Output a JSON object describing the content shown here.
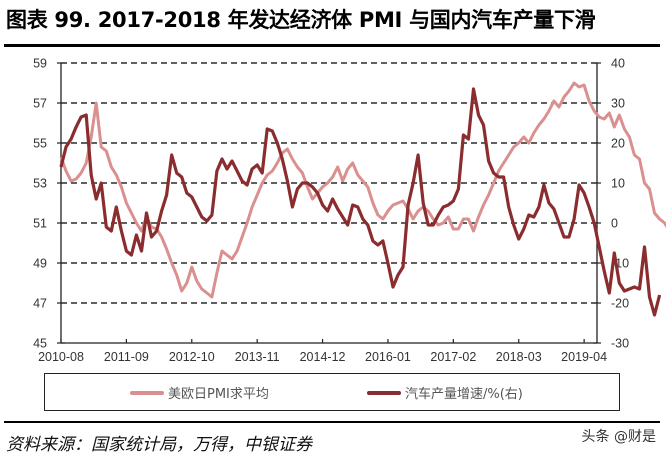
{
  "title": "图表 99. 2017-2018 年发达经济体 PMI 与国内汽车产量下滑",
  "source": "资料来源：国家统计局，万得，中银证券",
  "watermark": "头条 @财是",
  "legend": {
    "series1": "美欧日PMI求平均",
    "series2": "汽车产量增速/%(右)"
  },
  "colors": {
    "pmi": "#D9908E",
    "auto": "#8B2C2E",
    "grid": "#000000"
  },
  "chart_data": {
    "type": "line",
    "title": "图表 99. 2017-2018 年发达经济体 PMI 与国内汽车产量下滑",
    "xlabel": "",
    "ylabel_left": "",
    "ylabel_right": "",
    "x_tick_labels": [
      "2010-08",
      "2011-09",
      "2012-10",
      "2013-11",
      "2014-12",
      "2016-01",
      "2017-02",
      "2018-03",
      "2019-04"
    ],
    "y_left_ticks": [
      45,
      47,
      49,
      51,
      53,
      55,
      57,
      59
    ],
    "y_right_ticks": [
      -30,
      -20,
      -10,
      0,
      10,
      20,
      30,
      40
    ],
    "ylim_left": [
      45,
      59
    ],
    "ylim_right": [
      -30,
      40
    ],
    "grid": "horizontal dashed",
    "legend_position": "bottom",
    "start_month": "2010-08",
    "frequency": "monthly",
    "series": [
      {
        "name": "美欧日PMI求平均",
        "axis": "left",
        "values": [
          54.3,
          53.6,
          53.1,
          53.2,
          53.5,
          54.0,
          55.3,
          57.0,
          54.8,
          54.6,
          53.8,
          53.4,
          52.8,
          52.0,
          51.5,
          51.0,
          50.6,
          51.3,
          50.8,
          50.7,
          50.3,
          49.7,
          49.0,
          48.4,
          47.6,
          48.0,
          48.8,
          48.1,
          47.7,
          47.5,
          47.3,
          48.5,
          49.6,
          49.4,
          49.2,
          49.6,
          50.3,
          51.0,
          51.8,
          52.4,
          53.0,
          53.4,
          53.6,
          54.0,
          54.5,
          54.7,
          54.2,
          53.8,
          53.5,
          52.8,
          52.2,
          52.5,
          52.8,
          53.0,
          53.3,
          53.8,
          53.1,
          53.7,
          54.0,
          53.4,
          53.1,
          52.8,
          52.0,
          51.4,
          51.2,
          51.6,
          51.9,
          52.0,
          52.1,
          51.7,
          51.2,
          51.6,
          51.8,
          51.6,
          51.2,
          50.9,
          51.0,
          51.3,
          50.7,
          50.7,
          51.2,
          51.2,
          50.6,
          51.3,
          51.9,
          52.4,
          53.0,
          53.6,
          54.0,
          54.4,
          54.8,
          55.0,
          55.3,
          55.0,
          55.5,
          55.9,
          56.2,
          56.6,
          57.1,
          56.8,
          57.3,
          57.6,
          58.0,
          57.8,
          57.9,
          57.1,
          56.6,
          56.3,
          56.2,
          56.5,
          55.8,
          56.4,
          55.7,
          55.3,
          54.4,
          54.2,
          53.0,
          52.7,
          51.5,
          51.2,
          51.0,
          50.6,
          50.2,
          49.7
        ]
      },
      {
        "name": "汽车产量增速/%(右)",
        "axis": "right",
        "values": [
          14.0,
          19.0,
          21.0,
          24.0,
          26.5,
          27.0,
          12.0,
          6.0,
          10.0,
          -1.0,
          -2.0,
          4.0,
          -2.0,
          -7.0,
          -8.0,
          -3.0,
          -7.0,
          2.5,
          -3.5,
          -2.0,
          3.0,
          7.0,
          17.0,
          12.5,
          11.5,
          7.5,
          6.5,
          4.0,
          1.5,
          0.5,
          2.0,
          13.0,
          16.0,
          13.5,
          15.5,
          13.0,
          10.5,
          9.5,
          13.5,
          14.5,
          12.5,
          23.5,
          23.0,
          20.0,
          16.0,
          10.5,
          4.0,
          8.5,
          10.0,
          10.0,
          9.0,
          7.5,
          4.5,
          3.0,
          6.0,
          3.5,
          1.5,
          -0.5,
          4.5,
          4.0,
          1.0,
          -0.5,
          -4.5,
          -5.5,
          -4.5,
          -10.0,
          -16.0,
          -13.0,
          -11.0,
          4.5,
          10.0,
          17.0,
          5.0,
          -0.5,
          -0.5,
          2.0,
          4.0,
          4.5,
          5.5,
          8.5,
          22.0,
          21.0,
          33.5,
          27.0,
          24.5,
          15.5,
          12.5,
          11.5,
          11.5,
          4.0,
          -0.5,
          -4.0,
          -1.5,
          2.0,
          1.5,
          4.0,
          9.5,
          5.0,
          3.5,
          0.0,
          -3.5,
          -3.5,
          1.0,
          9.5,
          7.5,
          4.0,
          0.0,
          -6.0,
          -12.0,
          -17.5,
          -7.5,
          -15.0,
          -17.0,
          -16.5,
          -16.0,
          -16.5,
          -6.0,
          -18.5,
          -23.0,
          -18.0
        ]
      }
    ]
  }
}
